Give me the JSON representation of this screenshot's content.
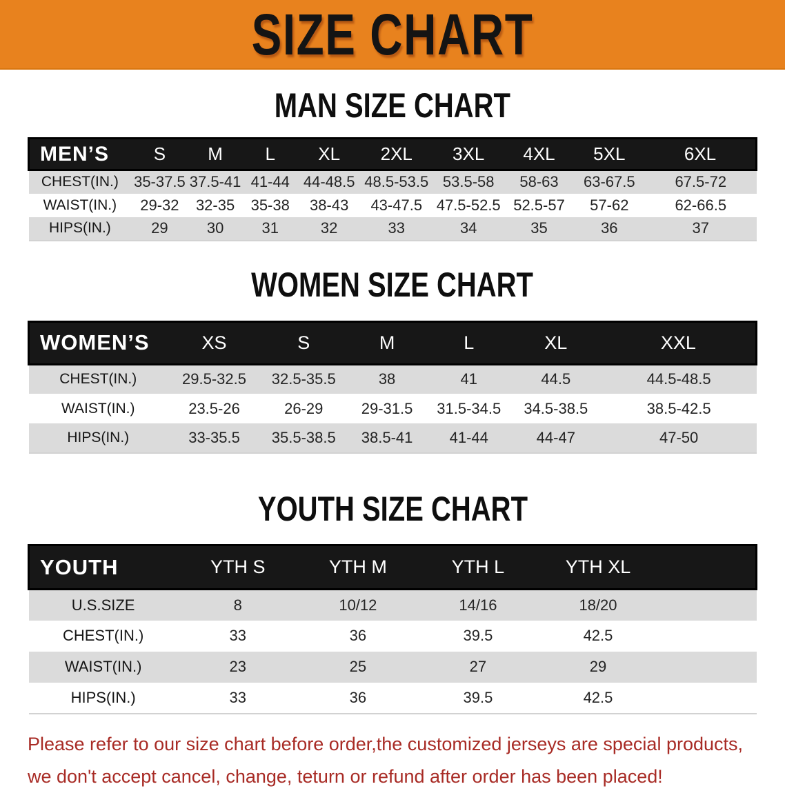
{
  "banner": {
    "title": "SIZE CHART"
  },
  "sections": [
    {
      "heading": "MAN SIZE CHART",
      "table": {
        "header": [
          "MEN’S",
          "S",
          "M",
          "L",
          "XL",
          "2XL",
          "3XL",
          "4XL",
          "5XL",
          "6XL"
        ],
        "rows": [
          {
            "label": "CHEST(IN.)",
            "values": [
              "35-37.5",
              "37.5-41",
              "41-44",
              "44-48.5",
              "48.5-53.5",
              "53.5-58",
              "58-63",
              "63-67.5",
              "67.5-72"
            ]
          },
          {
            "label": "WAIST(IN.)",
            "values": [
              "29-32",
              "32-35",
              "35-38",
              "38-43",
              "43-47.5",
              "47.5-52.5",
              "52.5-57",
              "57-62",
              "62-66.5"
            ]
          },
          {
            "label": "HIPS(IN.)",
            "values": [
              "29",
              "30",
              "31",
              "32",
              "33",
              "34",
              "35",
              "36",
              "37"
            ]
          }
        ]
      }
    },
    {
      "heading": "WOMEN SIZE CHART",
      "table": {
        "header": [
          "WOMEN’S",
          "XS",
          "S",
          "M",
          "L",
          "XL",
          "XXL"
        ],
        "rows": [
          {
            "label": "CHEST(IN.)",
            "values": [
              "29.5-32.5",
              "32.5-35.5",
              "38",
              "41",
              "44.5",
              "44.5-48.5"
            ]
          },
          {
            "label": "WAIST(IN.)",
            "values": [
              "23.5-26",
              "26-29",
              "29-31.5",
              "31.5-34.5",
              "34.5-38.5",
              "38.5-42.5"
            ]
          },
          {
            "label": "HIPS(IN.)",
            "values": [
              "33-35.5",
              "35.5-38.5",
              "38.5-41",
              "41-44",
              "44-47",
              "47-50"
            ]
          }
        ]
      }
    },
    {
      "heading": "YOUTH SIZE CHART",
      "table": {
        "header": [
          "YOUTH",
          "YTH S",
          "YTH M",
          "YTH L",
          "YTH XL"
        ],
        "rows": [
          {
            "label": "U.S.SIZE",
            "values": [
              "8",
              "10/12",
              "14/16",
              "18/20"
            ]
          },
          {
            "label": "CHEST(IN.)",
            "values": [
              "33",
              "36",
              "39.5",
              "42.5"
            ]
          },
          {
            "label": "WAIST(IN.)",
            "values": [
              "23",
              "25",
              "27",
              "29"
            ]
          },
          {
            "label": "HIPS(IN.)",
            "values": [
              "33",
              "36",
              "39.5",
              "42.5"
            ]
          }
        ]
      }
    }
  ],
  "note": {
    "line1": "Please refer to our size chart before order,the customized jerseys are special products,",
    "line2": "we don't accept cancel, change, teturn or refund after order has been placed!"
  },
  "colors": {
    "banner_bg": "#E8821E",
    "header_bg": "#171717",
    "stripe": "#DBDBDB",
    "note_text": "#A82B25"
  }
}
